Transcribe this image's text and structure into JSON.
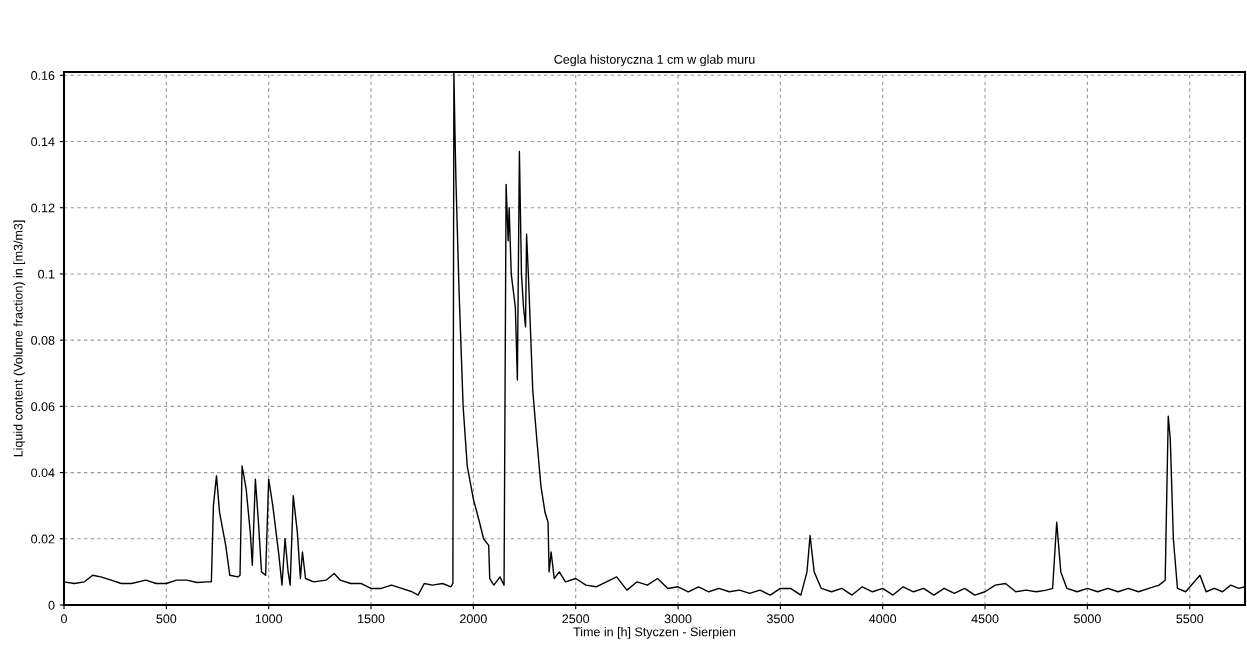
{
  "chart_data": {
    "type": "line",
    "title": "Cegla historyczna 1 cm w glab muru",
    "xlabel": "Time in [h] Styczen - Sierpien",
    "ylabel": "Liquid content (Volume fraction) in [m3/m3]",
    "xlim": [
      0,
      5770
    ],
    "ylim": [
      0,
      0.161
    ],
    "xticks": [
      0,
      500,
      1000,
      1500,
      2000,
      2500,
      3000,
      3500,
      4000,
      4500,
      5000,
      5500
    ],
    "yticks": [
      0,
      0.02,
      0.04,
      0.06,
      0.08,
      0.1,
      0.12,
      0.14,
      0.16
    ],
    "grid": true,
    "line_style": "solid",
    "marker": "none",
    "series": [
      {
        "color": "#000000",
        "x": [
          0,
          50,
          100,
          140,
          180,
          230,
          280,
          330,
          400,
          450,
          500,
          550,
          600,
          650,
          700,
          720,
          730,
          745,
          760,
          790,
          810,
          850,
          860,
          870,
          890,
          910,
          920,
          935,
          950,
          965,
          985,
          1000,
          1020,
          1050,
          1065,
          1080,
          1095,
          1105,
          1120,
          1140,
          1155,
          1165,
          1180,
          1220,
          1280,
          1320,
          1350,
          1400,
          1450,
          1500,
          1550,
          1600,
          1650,
          1700,
          1730,
          1760,
          1800,
          1850,
          1890,
          1900,
          1905,
          1910,
          1915,
          1930,
          1950,
          1970,
          2000,
          2030,
          2050,
          2075,
          2080,
          2100,
          2130,
          2150,
          2160,
          2170,
          2175,
          2185,
          2205,
          2215,
          2225,
          2235,
          2245,
          2255,
          2260,
          2270,
          2290,
          2310,
          2330,
          2350,
          2365,
          2370,
          2380,
          2395,
          2420,
          2450,
          2500,
          2550,
          2600,
          2650,
          2700,
          2750,
          2800,
          2850,
          2900,
          2950,
          3000,
          3050,
          3100,
          3150,
          3200,
          3250,
          3300,
          3350,
          3400,
          3450,
          3500,
          3550,
          3600,
          3630,
          3645,
          3665,
          3700,
          3750,
          3800,
          3850,
          3900,
          3950,
          4000,
          4050,
          4100,
          4150,
          4200,
          4250,
          4300,
          4350,
          4400,
          4450,
          4500,
          4550,
          4600,
          4650,
          4700,
          4750,
          4800,
          4830,
          4850,
          4870,
          4900,
          4950,
          5000,
          5050,
          5100,
          5150,
          5200,
          5250,
          5300,
          5350,
          5380,
          5395,
          5405,
          5420,
          5440,
          5480,
          5550,
          5580,
          5620,
          5660,
          5700,
          5740,
          5770
        ],
        "values": [
          0.007,
          0.0065,
          0.007,
          0.009,
          0.0085,
          0.0075,
          0.0065,
          0.0065,
          0.0075,
          0.0065,
          0.0065,
          0.0075,
          0.0075,
          0.0068,
          0.007,
          0.007,
          0.03,
          0.039,
          0.028,
          0.018,
          0.009,
          0.0085,
          0.009,
          0.042,
          0.035,
          0.022,
          0.012,
          0.038,
          0.025,
          0.01,
          0.009,
          0.038,
          0.03,
          0.015,
          0.006,
          0.02,
          0.01,
          0.006,
          0.033,
          0.022,
          0.008,
          0.016,
          0.008,
          0.007,
          0.0075,
          0.0095,
          0.0075,
          0.0065,
          0.0065,
          0.005,
          0.005,
          0.006,
          0.005,
          0.004,
          0.003,
          0.0065,
          0.006,
          0.0065,
          0.0055,
          0.0065,
          0.161,
          0.143,
          0.128,
          0.095,
          0.06,
          0.042,
          0.032,
          0.025,
          0.02,
          0.018,
          0.008,
          0.006,
          0.0085,
          0.006,
          0.127,
          0.11,
          0.12,
          0.1,
          0.09,
          0.068,
          0.137,
          0.1,
          0.09,
          0.084,
          0.112,
          0.098,
          0.065,
          0.05,
          0.036,
          0.028,
          0.025,
          0.01,
          0.016,
          0.008,
          0.01,
          0.007,
          0.008,
          0.006,
          0.0055,
          0.007,
          0.0085,
          0.0045,
          0.007,
          0.006,
          0.008,
          0.005,
          0.0055,
          0.004,
          0.0055,
          0.004,
          0.005,
          0.004,
          0.0045,
          0.0035,
          0.0045,
          0.003,
          0.005,
          0.005,
          0.003,
          0.01,
          0.021,
          0.01,
          0.005,
          0.004,
          0.005,
          0.003,
          0.0055,
          0.004,
          0.005,
          0.003,
          0.0055,
          0.004,
          0.005,
          0.003,
          0.005,
          0.0035,
          0.005,
          0.003,
          0.004,
          0.006,
          0.0065,
          0.004,
          0.0045,
          0.004,
          0.0045,
          0.005,
          0.025,
          0.01,
          0.005,
          0.004,
          0.005,
          0.004,
          0.005,
          0.004,
          0.005,
          0.004,
          0.005,
          0.006,
          0.0075,
          0.057,
          0.05,
          0.02,
          0.005,
          0.004,
          0.009,
          0.004,
          0.005,
          0.004,
          0.006,
          0.005,
          0.0055
        ]
      }
    ]
  }
}
